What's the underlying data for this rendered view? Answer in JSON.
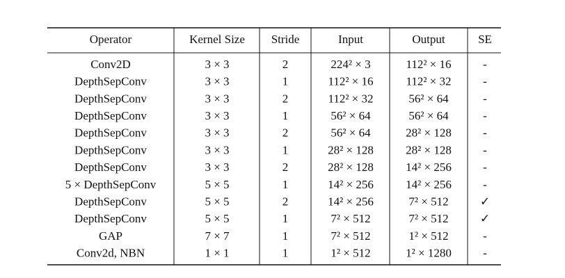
{
  "table": {
    "header": [
      "Operator",
      "Kernel Size",
      "Stride",
      "Input",
      "Output",
      "SE"
    ],
    "rows": [
      [
        "Conv2D",
        "3 × 3",
        "2",
        "224² × 3",
        "112² × 16",
        "-"
      ],
      [
        "DepthSepConv",
        "3 × 3",
        "1",
        "112² × 16",
        "112² × 32",
        "-"
      ],
      [
        "DepthSepConv",
        "3 × 3",
        "2",
        "112² × 32",
        "56² × 64",
        "-"
      ],
      [
        "DepthSepConv",
        "3 × 3",
        "1",
        "56² × 64",
        "56² × 64",
        "-"
      ],
      [
        "DepthSepConv",
        "3 × 3",
        "2",
        "56² × 64",
        "28² × 128",
        "-"
      ],
      [
        "DepthSepConv",
        "3 × 3",
        "1",
        "28² × 128",
        "28² × 128",
        "-"
      ],
      [
        "DepthSepConv",
        "3 × 3",
        "2",
        "28² × 128",
        "14² × 256",
        "-"
      ],
      [
        "5 × DepthSepConv",
        "5 × 5",
        "1",
        "14² × 256",
        "14² × 256",
        "-"
      ],
      [
        "DepthSepConv",
        "5 × 5",
        "2",
        "14² × 256",
        "7² × 512",
        "✓"
      ],
      [
        "DepthSepConv",
        "5 × 5",
        "1",
        "7² × 512",
        "7² × 512",
        "✓"
      ],
      [
        "GAP",
        "7 × 7",
        "1",
        "7² × 512",
        "1² × 512",
        "-"
      ],
      [
        "Conv2d, NBN",
        "1 × 1",
        "1",
        "1² × 512",
        "1² × 1280",
        "-"
      ]
    ]
  }
}
